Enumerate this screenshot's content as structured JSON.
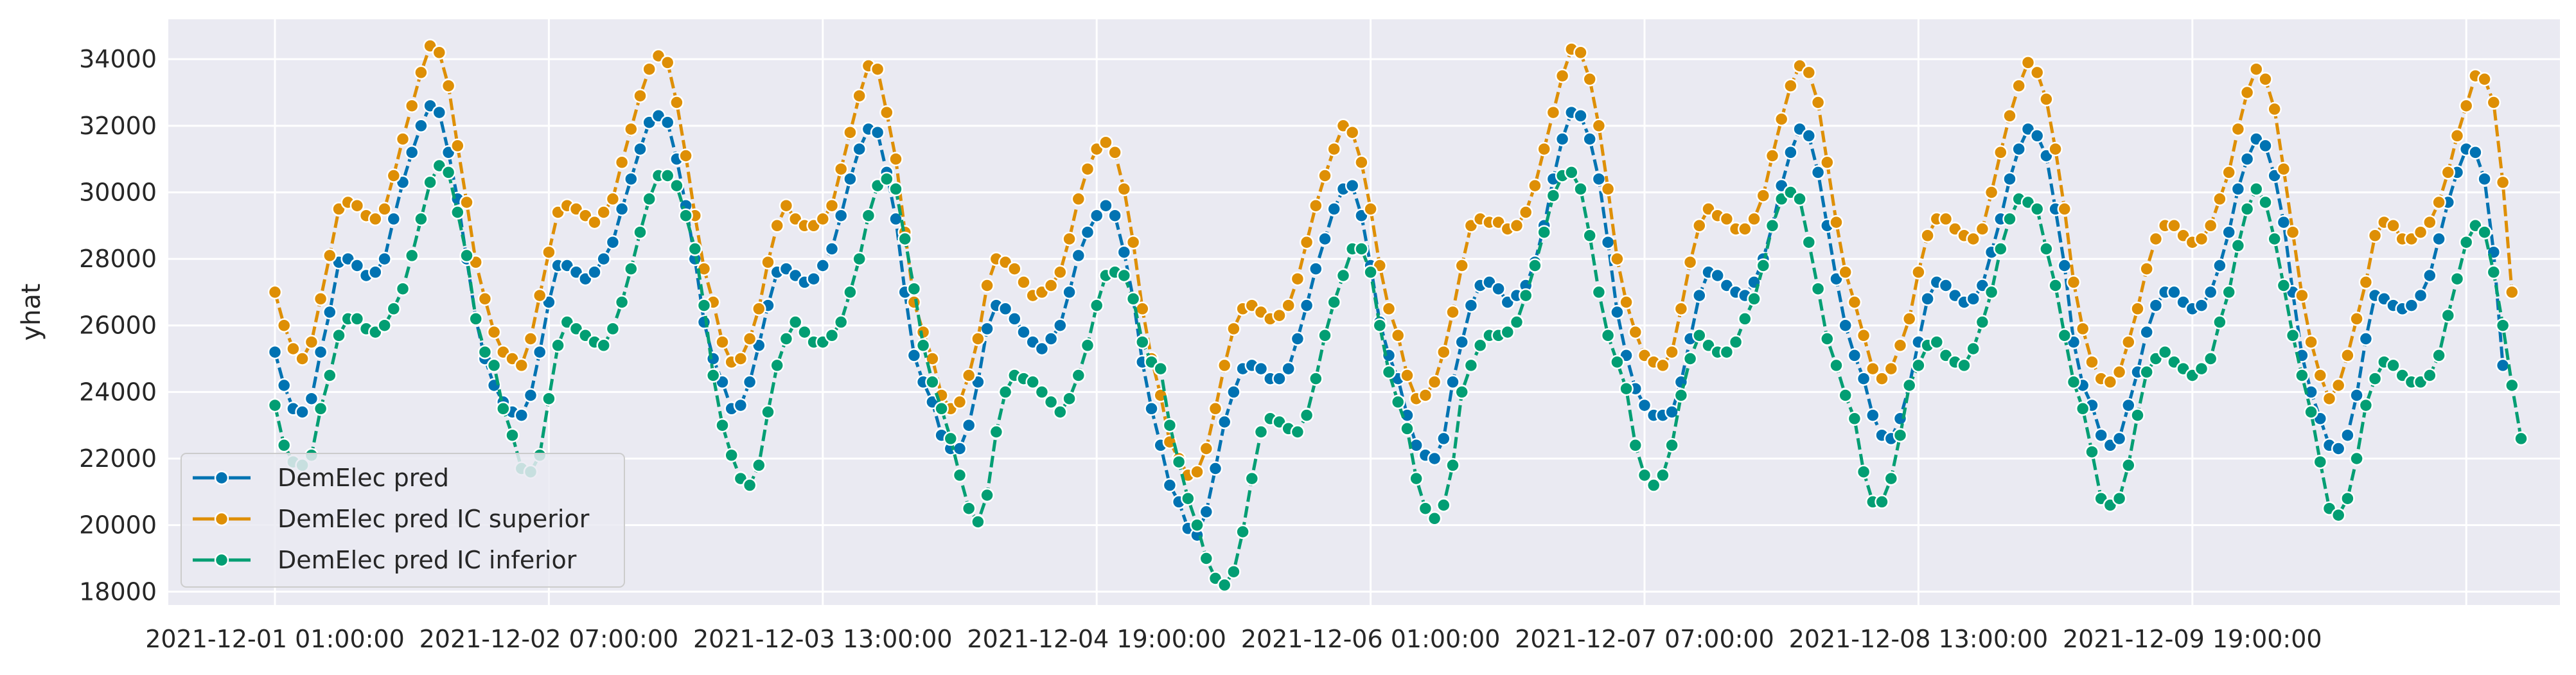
{
  "chart_data": {
    "type": "line",
    "ylabel": "yhat",
    "xlabel": "",
    "ylim": [
      17600,
      35200
    ],
    "yticks": [
      18000,
      20000,
      22000,
      24000,
      26000,
      28000,
      30000,
      32000,
      34000
    ],
    "xticks": [
      "2021-12-01 01:00:00",
      "2021-12-02 07:00:00",
      "2021-12-03 13:00:00",
      "2021-12-04 19:00:00",
      "2021-12-06 01:00:00",
      "2021-12-07 07:00:00",
      "2021-12-08 13:00:00",
      "2021-12-09 19:00:00"
    ],
    "grid": true,
    "legend_position": "lower-left",
    "colors": {
      "background": "#eaeaf2",
      "grid": "#ffffff"
    },
    "series": [
      {
        "name": "DemElec pred",
        "color": "#0173b2",
        "values": [
          25200,
          24200,
          23500,
          23400,
          23800,
          25200,
          26400,
          27900,
          28000,
          27800,
          27500,
          27600,
          28000,
          29200,
          30300,
          31200,
          32000,
          32600,
          32400,
          31200,
          29800,
          28000,
          26200,
          25000,
          24200,
          23700,
          23400,
          23300,
          23900,
          25200,
          26700,
          27800,
          27800,
          27600,
          27400,
          27600,
          28000,
          28500,
          29500,
          30400,
          31300,
          32100,
          32300,
          32100,
          31000,
          29600,
          28000,
          26100,
          25000,
          24300,
          23500,
          23600,
          24300,
          25400,
          26600,
          27600,
          27700,
          27500,
          27300,
          27400,
          27800,
          28300,
          29300,
          30400,
          31300,
          31900,
          31800,
          30600,
          29200,
          27000,
          25100,
          24300,
          23700,
          22700,
          22300,
          22300,
          23000,
          24300,
          25900,
          26600,
          26500,
          26200,
          25800,
          25500,
          25300,
          25600,
          26000,
          27000,
          28100,
          28800,
          29300,
          29600,
          29300,
          28200,
          26800,
          24900,
          23500,
          22400,
          21200,
          20700,
          19900,
          19700,
          20400,
          21700,
          23100,
          24000,
          24700,
          24800,
          24700,
          24400,
          24400,
          24700,
          25600,
          26600,
          27700,
          28600,
          29500,
          30100,
          30200,
          29300,
          27800,
          26100,
          25100,
          24400,
          23300,
          22400,
          22100,
          22000,
          22600,
          24300,
          25500,
          26600,
          27200,
          27300,
          27100,
          26700,
          26900,
          27200,
          27900,
          29000,
          30400,
          31600,
          32400,
          32300,
          31600,
          30400,
          28500,
          26400,
          25100,
          24100,
          23600,
          23300,
          23300,
          23400,
          24300,
          25600,
          26900,
          27600,
          27500,
          27200,
          27000,
          26900,
          27300,
          28000,
          29000,
          30200,
          31200,
          31900,
          31700,
          30600,
          29000,
          27400,
          26000,
          25100,
          24400,
          23300,
          22700,
          22600,
          23200,
          24200,
          25500,
          26800,
          27300,
          27200,
          26900,
          26700,
          26800,
          27200,
          28200,
          29200,
          30400,
          31300,
          31900,
          31700,
          31100,
          29500,
          27800,
          25500,
          24200,
          23600,
          22700,
          22400,
          22600,
          23600,
          24600,
          25800,
          26600,
          27000,
          27000,
          26700,
          26500,
          26600,
          27000,
          27800,
          28800,
          30100,
          31000,
          31600,
          31400,
          30500,
          29100,
          27000,
          25100,
          24000,
          23200,
          22400,
          22300,
          22700,
          23900,
          25600,
          26900,
          26800,
          26600,
          26500,
          26600,
          26900,
          27500,
          28600,
          29700,
          30600,
          31300,
          31200,
          30400,
          28200,
          24800
        ]
      },
      {
        "name": "DemElec pred IC superior",
        "color": "#de8f05",
        "values": [
          27000,
          26000,
          25300,
          25000,
          25500,
          26800,
          28100,
          29500,
          29700,
          29600,
          29300,
          29200,
          29500,
          30500,
          31600,
          32600,
          33600,
          34400,
          34200,
          33200,
          31400,
          29700,
          27900,
          26800,
          25800,
          25200,
          25000,
          24800,
          25600,
          26900,
          28200,
          29400,
          29600,
          29500,
          29300,
          29100,
          29400,
          29800,
          30900,
          31900,
          32900,
          33700,
          34100,
          33900,
          32700,
          31100,
          29300,
          27700,
          26700,
          25500,
          24900,
          25000,
          25600,
          26500,
          27900,
          29000,
          29600,
          29200,
          29000,
          29000,
          29200,
          29600,
          30700,
          31800,
          32900,
          33800,
          33700,
          32400,
          31000,
          28800,
          26700,
          25800,
          25000,
          23900,
          23500,
          23700,
          24500,
          25600,
          27200,
          28000,
          27900,
          27700,
          27300,
          26900,
          27000,
          27200,
          27600,
          28600,
          29800,
          30700,
          31300,
          31500,
          31200,
          30100,
          28500,
          26500,
          25000,
          23900,
          22500,
          22000,
          21500,
          21600,
          22300,
          23500,
          24800,
          25900,
          26500,
          26600,
          26400,
          26200,
          26300,
          26600,
          27400,
          28500,
          29600,
          30500,
          31300,
          32000,
          31800,
          30900,
          29500,
          27800,
          26500,
          25700,
          24500,
          23800,
          23900,
          24300,
          25200,
          26400,
          27800,
          29000,
          29200,
          29100,
          29100,
          28900,
          29000,
          29400,
          30200,
          31300,
          32400,
          33500,
          34300,
          34200,
          33400,
          32000,
          30100,
          28000,
          26700,
          25800,
          25100,
          24900,
          24800,
          25200,
          26500,
          27900,
          29000,
          29500,
          29300,
          29200,
          28900,
          28900,
          29200,
          29900,
          31100,
          32200,
          33200,
          33800,
          33600,
          32700,
          30900,
          29100,
          27600,
          26700,
          25700,
          24700,
          24400,
          24700,
          25400,
          26200,
          27600,
          28700,
          29200,
          29200,
          28900,
          28700,
          28600,
          28900,
          30000,
          31200,
          32300,
          33200,
          33900,
          33600,
          32800,
          31300,
          29500,
          27300,
          25900,
          24900,
          24400,
          24300,
          24600,
          25500,
          26500,
          27700,
          28600,
          29000,
          29000,
          28700,
          28500,
          28600,
          29000,
          29800,
          30600,
          31900,
          33000,
          33700,
          33400,
          32500,
          30700,
          28800,
          26900,
          25500,
          24500,
          23800,
          24200,
          25100,
          26200,
          27300,
          28700,
          29100,
          29000,
          28600,
          28600,
          28800,
          29100,
          29700,
          30600,
          31700,
          32600,
          33500,
          33400,
          32700,
          30300,
          27000
        ]
      },
      {
        "name": "DemElec pred IC inferior",
        "color": "#029e73",
        "values": [
          23600,
          22400,
          21900,
          21800,
          22100,
          23500,
          24500,
          25700,
          26200,
          26200,
          25900,
          25800,
          26000,
          26500,
          27100,
          28100,
          29200,
          30300,
          30800,
          30600,
          29400,
          28100,
          26200,
          25200,
          24800,
          23500,
          22700,
          21700,
          21600,
          22100,
          23800,
          25400,
          26100,
          25900,
          25700,
          25500,
          25400,
          25900,
          26700,
          27700,
          28800,
          29800,
          30500,
          30500,
          30200,
          29300,
          28300,
          26600,
          24500,
          23000,
          22100,
          21400,
          21200,
          21800,
          23400,
          24800,
          25600,
          26100,
          25800,
          25500,
          25500,
          25700,
          26100,
          27000,
          28000,
          29300,
          30200,
          30400,
          30100,
          28600,
          27100,
          25400,
          24300,
          23500,
          22600,
          21500,
          20500,
          20100,
          20900,
          22800,
          24000,
          24500,
          24400,
          24300,
          24000,
          23700,
          23400,
          23800,
          24500,
          25400,
          26600,
          27500,
          27600,
          27500,
          26800,
          25500,
          24900,
          24700,
          23000,
          21900,
          20800,
          20000,
          19000,
          18400,
          18200,
          18600,
          19800,
          21400,
          22800,
          23200,
          23100,
          22900,
          22800,
          23300,
          24400,
          25700,
          26700,
          27500,
          28300,
          28300,
          27600,
          26000,
          24600,
          23700,
          22900,
          21400,
          20500,
          20200,
          20600,
          21800,
          24000,
          24800,
          25400,
          25700,
          25700,
          25800,
          26100,
          26900,
          27800,
          28800,
          29900,
          30500,
          30600,
          30100,
          28700,
          27000,
          25700,
          24900,
          24100,
          22400,
          21500,
          21200,
          21500,
          22400,
          23900,
          25000,
          25700,
          25400,
          25200,
          25200,
          25500,
          26200,
          26800,
          27800,
          29000,
          29800,
          30000,
          29800,
          28500,
          27100,
          25600,
          24800,
          23900,
          23200,
          21600,
          20700,
          20700,
          21400,
          22700,
          24200,
          24800,
          25400,
          25500,
          25100,
          24900,
          24800,
          25300,
          26100,
          27000,
          28300,
          29200,
          29800,
          29700,
          29500,
          28300,
          27200,
          25700,
          24300,
          23500,
          22200,
          20800,
          20600,
          20800,
          21800,
          23300,
          24600,
          25000,
          25200,
          24900,
          24700,
          24500,
          24700,
          25000,
          26100,
          27000,
          28400,
          29500,
          30100,
          29700,
          28600,
          27200,
          25700,
          24500,
          23400,
          21900,
          20500,
          20300,
          20800,
          22000,
          23600,
          24400,
          24900,
          24800,
          24500,
          24300,
          24300,
          24500,
          25100,
          26300,
          27400,
          28500,
          29000,
          28800,
          27600,
          26000,
          24200,
          22600
        ]
      }
    ]
  }
}
